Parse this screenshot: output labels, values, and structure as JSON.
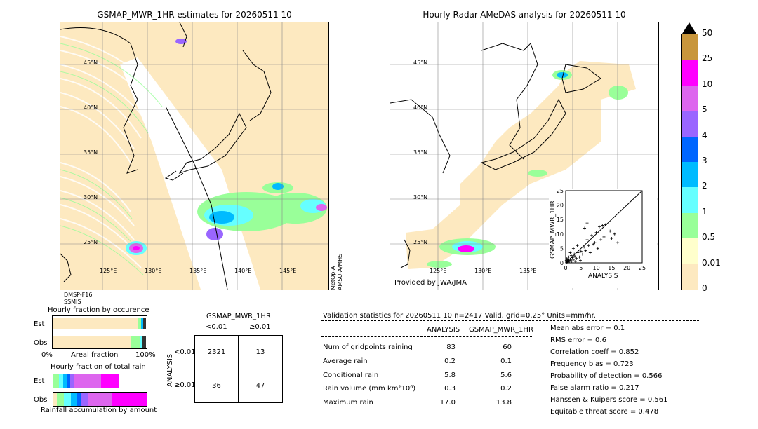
{
  "left_map": {
    "title": "GSMAP_MWR_1HR estimates for 20260511 10",
    "lat_labels": [
      "45°N",
      "40°N",
      "35°N",
      "30°N",
      "25°N"
    ],
    "lon_labels": [
      "125°E",
      "130°E",
      "135°E",
      "140°E",
      "145°E"
    ],
    "sensor_left": [
      "DMSP-F16",
      "SSMIS"
    ],
    "sensor_right": [
      "MetOp-A",
      "AMSU-A/MHS"
    ]
  },
  "right_map": {
    "title": "Hourly Radar-AMeDAS analysis for 20260511 10",
    "lat_labels": [
      "45°N",
      "40°N",
      "35°N",
      "30°N",
      "25°N"
    ],
    "lon_labels": [
      "125°E",
      "130°E",
      "135°E"
    ],
    "credit": "Provided by JWA/JMA"
  },
  "colorbar": {
    "labels": [
      "50",
      "25",
      "10",
      "5",
      "4",
      "3",
      "2",
      "1",
      "0.5",
      "0.01",
      "0"
    ],
    "colors": [
      "#c8963c",
      "#ff00ff",
      "#dd66ee",
      "#9a66ff",
      "#0066ff",
      "#00bbff",
      "#66ffff",
      "#99ff99",
      "#ffffcc",
      "#fde9c0"
    ]
  },
  "scatter": {
    "xlabel": "ANALYSIS",
    "ylabel": "GSMAP_MWR_1HR",
    "ticks": [
      "0",
      "5",
      "10",
      "15",
      "20",
      "25"
    ]
  },
  "occurrence": {
    "title": "Hourly fraction by occurence",
    "rows": [
      "Est",
      "Obs"
    ],
    "axis_left": "0%",
    "axis_mid": "Areal fraction",
    "axis_right": "100%"
  },
  "total_rain": {
    "title": "Hourly fraction of total rain",
    "rows": [
      "Est",
      "Obs"
    ],
    "axis_label": "Rainfall accumulation by amount"
  },
  "contingency": {
    "title": "GSMAP_MWR_1HR",
    "col_lt": "<0.01",
    "col_ge": "≥0.01",
    "row_lt": "<0.01",
    "row_ge": "≥0.01",
    "side_label": "ANALYSIS",
    "cells": [
      "2321",
      "13",
      "36",
      "47"
    ]
  },
  "validation": {
    "header": "Validation statistics for 20260511 10  n=2417 Valid. grid=0.25° Units=mm/hr.",
    "col_analysis": "ANALYSIS",
    "col_gsmap": "GSMAP_MWR_1HR",
    "rows": [
      {
        "label": "Num of gridpoints raining",
        "analysis": "83",
        "gsmap": "60"
      },
      {
        "label": "Average rain",
        "analysis": "0.2",
        "gsmap": "0.1"
      },
      {
        "label": "Conditional rain",
        "analysis": "5.8",
        "gsmap": "5.6"
      },
      {
        "label": "Rain volume (mm km²10⁶)",
        "analysis": "0.3",
        "gsmap": "0.2"
      },
      {
        "label": "Maximum rain",
        "analysis": "17.0",
        "gsmap": "13.8"
      }
    ],
    "scores": [
      "Mean abs error =    0.1",
      "RMS error =    0.6",
      "Correlation coeff =  0.852",
      "Frequency bias =  0.723",
      "Probability of detection =  0.566",
      "False alarm ratio =  0.217",
      "Hanssen & Kuipers score =  0.561",
      "Equitable threat score =  0.478"
    ]
  },
  "chart_data": {
    "type": "scatter",
    "title": "",
    "xlabel": "ANALYSIS",
    "ylabel": "GSMAP_MWR_1HR",
    "xlim": [
      0,
      25
    ],
    "ylim": [
      0,
      25
    ],
    "points": [
      [
        0.3,
        0.2
      ],
      [
        0.5,
        0.4
      ],
      [
        0.8,
        0.3
      ],
      [
        1.0,
        0.8
      ],
      [
        1.2,
        0.5
      ],
      [
        0.6,
        1.0
      ],
      [
        1.5,
        1.2
      ],
      [
        2.0,
        0.6
      ],
      [
        2.2,
        1.8
      ],
      [
        1.8,
        2.5
      ],
      [
        2.5,
        1.0
      ],
      [
        3.0,
        2.2
      ],
      [
        3.2,
        0.5
      ],
      [
        0.4,
        1.5
      ],
      [
        1.0,
        2.0
      ],
      [
        2.8,
        3.0
      ],
      [
        3.5,
        1.5
      ],
      [
        4.0,
        3.5
      ],
      [
        4.5,
        2.0
      ],
      [
        5.0,
        4.0
      ],
      [
        5.5,
        3.0
      ],
      [
        6.0,
        5.5
      ],
      [
        6.5,
        4.2
      ],
      [
        7.0,
        8.0
      ],
      [
        7.5,
        6.0
      ],
      [
        8.0,
        3.5
      ],
      [
        8.5,
        9.5
      ],
      [
        9.0,
        6.5
      ],
      [
        9.5,
        7.0
      ],
      [
        10.0,
        10.5
      ],
      [
        10.5,
        5.0
      ],
      [
        11.0,
        12.5
      ],
      [
        11.5,
        8.0
      ],
      [
        12.0,
        13.0
      ],
      [
        12.5,
        9.0
      ],
      [
        13.0,
        13.2
      ],
      [
        14.5,
        11.0
      ],
      [
        15.0,
        8.5
      ],
      [
        16.0,
        10.0
      ],
      [
        17.0,
        7.0
      ],
      [
        7.0,
        13.8
      ],
      [
        6.2,
        12.0
      ],
      [
        3.8,
        6.0
      ],
      [
        2.5,
        5.0
      ],
      [
        1.5,
        3.5
      ],
      [
        0.2,
        0.8
      ],
      [
        0.7,
        0.1
      ],
      [
        4.8,
        0.8
      ]
    ]
  }
}
